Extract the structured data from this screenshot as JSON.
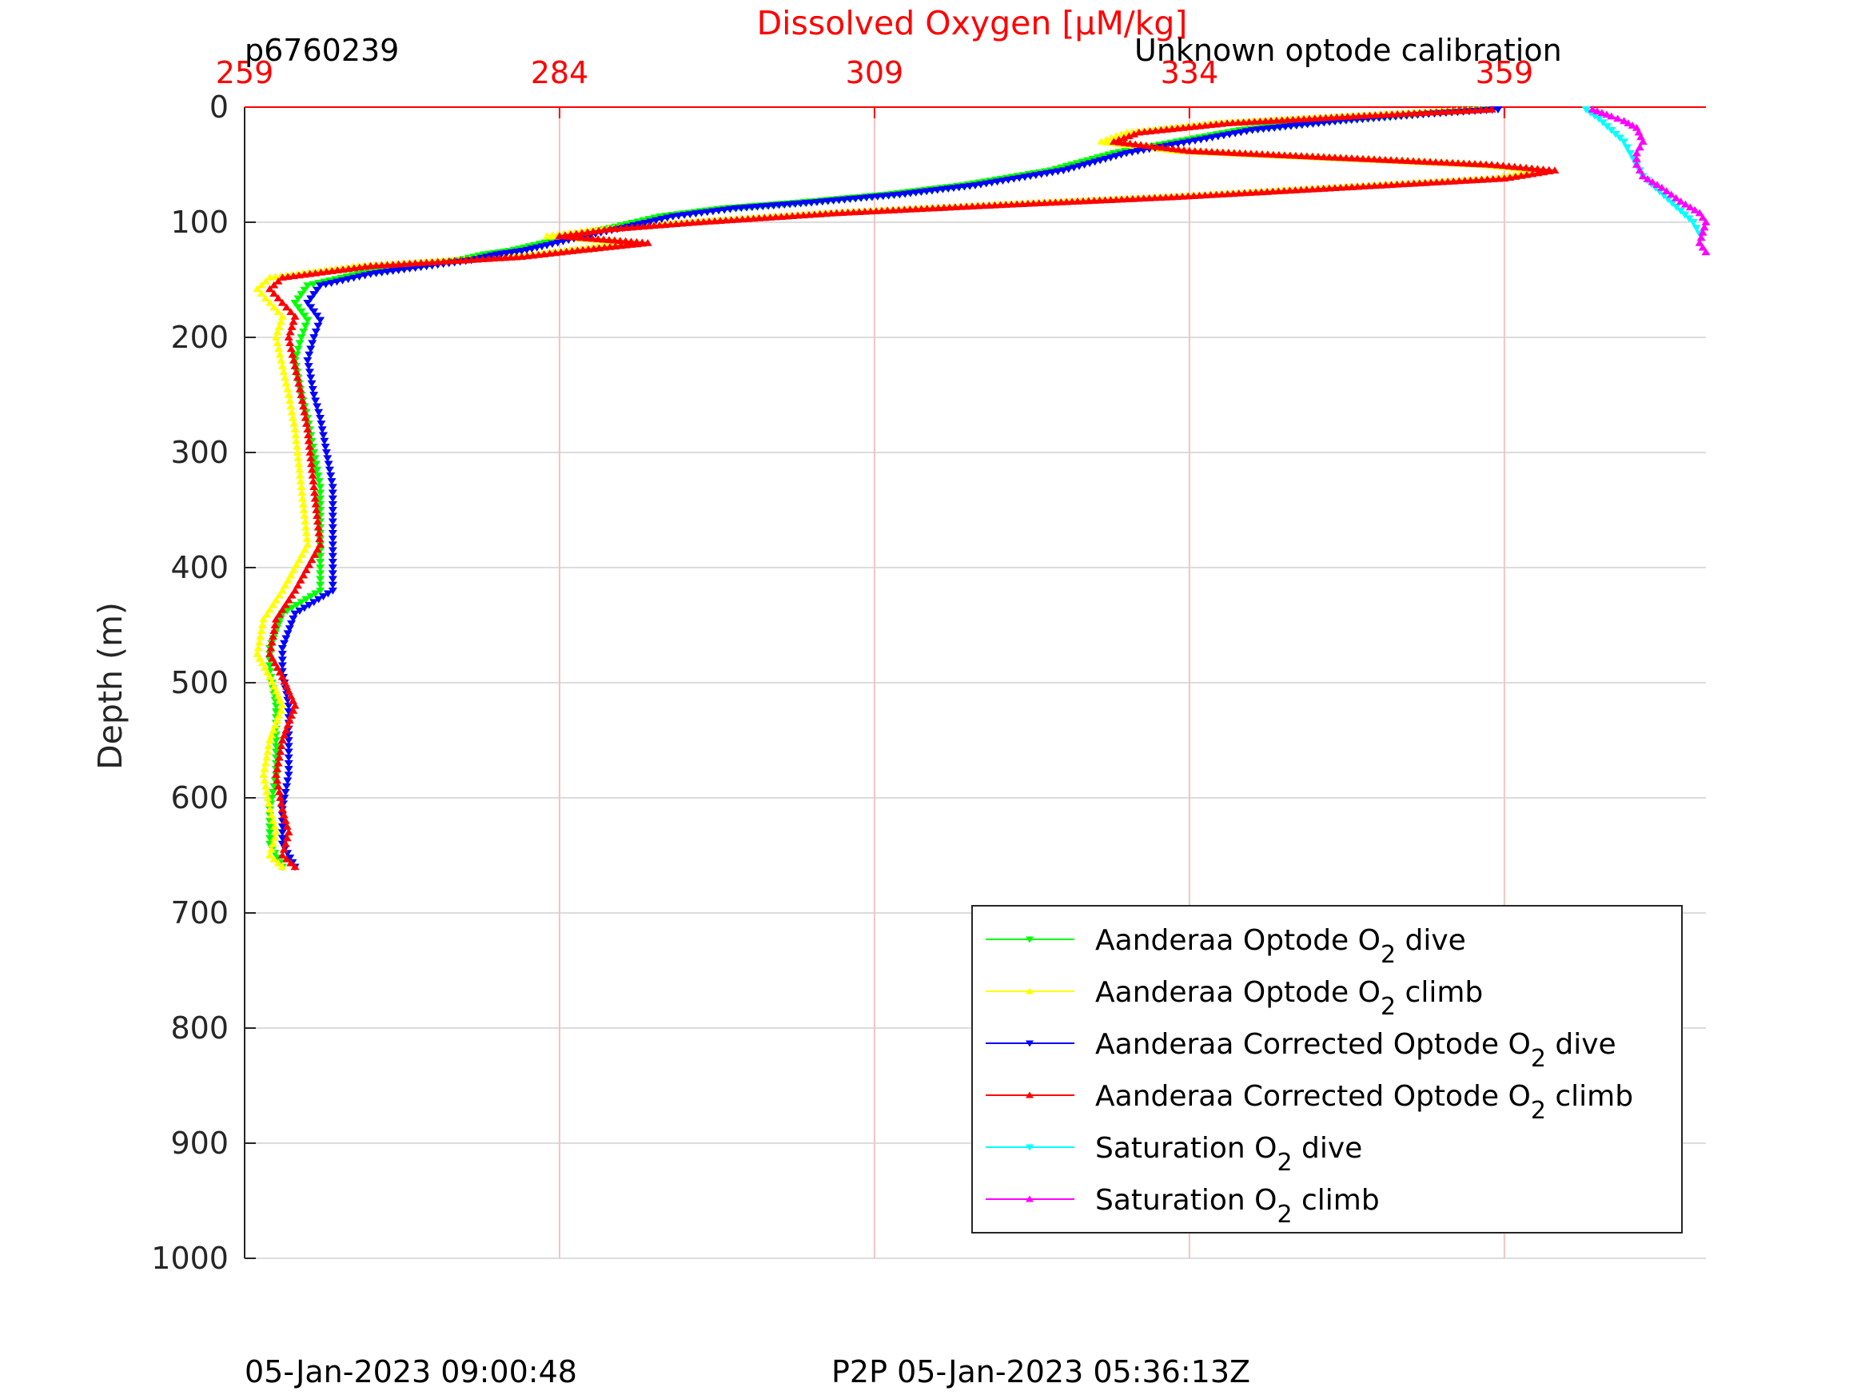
{
  "header": {
    "glider_id": "p6760239",
    "calibration_note": "Unknown optode calibration"
  },
  "footer": {
    "dive_time": "05-Jan-2023 09:00:48",
    "p2p_time": "P2P 05-Jan-2023 05:36:13Z"
  },
  "chart_data": {
    "type": "line",
    "title": "",
    "xlabel": "Dissolved Oxygen [μM/kg]",
    "ylabel": "Depth (m)",
    "xlim": [
      259,
      375
    ],
    "ylim": [
      1000,
      0
    ],
    "x_ticks": [
      "259",
      "284",
      "309",
      "334",
      "359"
    ],
    "y_ticks": [
      "0",
      "100",
      "200",
      "300",
      "400",
      "500",
      "600",
      "700",
      "800",
      "900",
      "1000"
    ],
    "grid": true,
    "legend_position": "bottom-right",
    "colors": {
      "axis_x": "#ff0000",
      "axis_y": "#262626",
      "grid_x": "#f2c4c4",
      "grid_y": "#dcdcdc"
    },
    "series": [
      {
        "name": "Aanderaa Optode O",
        "sub": "2",
        "suffix": " dive",
        "color": "#00ff00",
        "marker": "down",
        "x": [
          357.5,
          352,
          345,
          338,
          333,
          328,
          323,
          316,
          310,
          303,
          297,
          292,
          288,
          285,
          282,
          280,
          278,
          276,
          268,
          264,
          263,
          264,
          263.5,
          263,
          263.5,
          264,
          264.5,
          265,
          265,
          265,
          265,
          262,
          261,
          261,
          261.5,
          261.5,
          261.5,
          261,
          261,
          262
        ],
        "y": [
          2,
          6,
          12,
          20,
          30,
          40,
          55,
          68,
          76,
          83,
          88,
          95,
          105,
          112,
          120,
          125,
          128,
          133,
          145,
          155,
          170,
          185,
          200,
          220,
          250,
          270,
          300,
          330,
          370,
          400,
          420,
          440,
          470,
          490,
          520,
          550,
          580,
          610,
          640,
          660
        ]
      },
      {
        "name": "Aanderaa Optode O",
        "sub": "2",
        "suffix": " climb",
        "color": "#ffff00",
        "marker": "up",
        "x": [
          357,
          346,
          336,
          329,
          327,
          333,
          345,
          357,
          362,
          358,
          345,
          332,
          318,
          305,
          294,
          287,
          283,
          290,
          284,
          280,
          268,
          261,
          260,
          261,
          262,
          261.5,
          262,
          262.5,
          263,
          263.5,
          264,
          262,
          260.5,
          260,
          261,
          262,
          261,
          260.5,
          261,
          261.5,
          261,
          262
        ],
        "y": [
          2,
          8,
          14,
          22,
          30,
          38,
          44,
          50,
          55,
          62,
          70,
          78,
          85,
          92,
          100,
          106,
          112,
          118,
          125,
          130,
          138,
          148,
          158,
          170,
          182,
          200,
          225,
          250,
          280,
          330,
          380,
          420,
          445,
          475,
          495,
          520,
          550,
          580,
          610,
          630,
          650,
          660
        ]
      },
      {
        "name": "Aanderaa Corrected Optode O",
        "sub": "2",
        "suffix": " dive",
        "color": "#0000ff",
        "marker": "down",
        "x": [
          358.5,
          353,
          346,
          339,
          334,
          329,
          324,
          317,
          311,
          304,
          298,
          293,
          289,
          286,
          283,
          281,
          279,
          277,
          269,
          265,
          264,
          265,
          264.5,
          264,
          264.5,
          265,
          265.5,
          266,
          266,
          266,
          266,
          263,
          262,
          262,
          262.5,
          262.5,
          262.5,
          262,
          262,
          263
        ],
        "y": [
          2,
          6,
          12,
          20,
          30,
          40,
          55,
          68,
          76,
          83,
          88,
          95,
          105,
          112,
          120,
          125,
          128,
          133,
          145,
          155,
          170,
          185,
          200,
          220,
          250,
          270,
          300,
          330,
          370,
          400,
          420,
          440,
          470,
          490,
          520,
          550,
          580,
          610,
          640,
          660
        ]
      },
      {
        "name": "Aanderaa Corrected Optode O",
        "sub": "2",
        "suffix": " climb",
        "color": "#ff0000",
        "marker": "up",
        "x": [
          358,
          347,
          337,
          330,
          328,
          334,
          346,
          358,
          363,
          359,
          346,
          333,
          319,
          306,
          295,
          288,
          284,
          291,
          285,
          281,
          269,
          262,
          261,
          262,
          263,
          262.5,
          263,
          263.5,
          264,
          264.5,
          265,
          263,
          261.5,
          261,
          262,
          263,
          262,
          261.5,
          262,
          262.5,
          262,
          263
        ],
        "y": [
          2,
          8,
          14,
          22,
          30,
          38,
          44,
          50,
          55,
          62,
          70,
          78,
          85,
          92,
          100,
          106,
          112,
          118,
          125,
          130,
          138,
          148,
          158,
          170,
          182,
          200,
          225,
          250,
          280,
          330,
          380,
          420,
          445,
          475,
          495,
          520,
          550,
          580,
          610,
          630,
          650,
          660
        ]
      },
      {
        "name": "Saturation O",
        "sub": "2",
        "suffix": " dive",
        "color": "#00ffff",
        "marker": "down",
        "x": [
          365.5,
          366.5,
          367.5,
          368.5,
          369,
          369.5,
          370,
          371,
          372,
          373,
          374,
          374.5
        ],
        "y": [
          2,
          10,
          20,
          30,
          40,
          50,
          60,
          70,
          80,
          90,
          100,
          110
        ]
      },
      {
        "name": "Saturation O",
        "sub": "2",
        "suffix": " climb",
        "color": "#ff00ff",
        "marker": "up",
        "x": [
          366,
          367.5,
          368.5,
          369.5,
          370,
          369.5,
          369.5,
          370,
          371.5,
          373,
          374.5,
          375,
          374.5,
          375
        ],
        "y": [
          2,
          8,
          12,
          18,
          30,
          40,
          50,
          60,
          70,
          82,
          92,
          100,
          118,
          126
        ]
      }
    ]
  }
}
